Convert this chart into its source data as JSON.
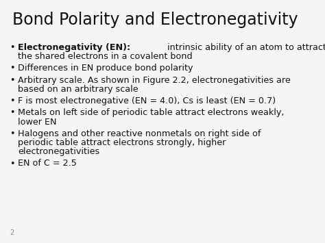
{
  "title": "Bond Polarity and Electronegativity",
  "background_color": "#f5f5f5",
  "title_color": "#111111",
  "title_fontsize": 17,
  "slide_number": "2",
  "bullet_fontsize": 9.2,
  "slide_number_fontsize": 7,
  "text_color": "#111111",
  "bullet_char": "•",
  "bullets": [
    {
      "bold": "Electronegativity (EN):",
      "normal": " intrinsic ability of an atom to attract\nthe shared electrons in a covalent bond",
      "lines": 2
    },
    {
      "bold": "",
      "normal": "Differences in EN produce bond polarity",
      "lines": 1
    },
    {
      "bold": "",
      "normal": "Arbitrary scale. As shown in Figure 2.2, electronegativities are\nbased on an arbitrary scale",
      "lines": 2
    },
    {
      "bold": "",
      "normal": "F is most electronegative (EN = 4.0), Cs is least (EN = 0.7)",
      "lines": 1
    },
    {
      "bold": "",
      "normal": "Metals on left side of periodic table attract electrons weakly,\nlower EN",
      "lines": 2
    },
    {
      "bold": "",
      "normal": "Halogens and other reactive nonmetals on right side of\nperiodic table attract electrons strongly, higher\nelectronegativities",
      "lines": 3
    },
    {
      "bold": "",
      "normal": "EN of C = 2.5",
      "lines": 1
    }
  ]
}
